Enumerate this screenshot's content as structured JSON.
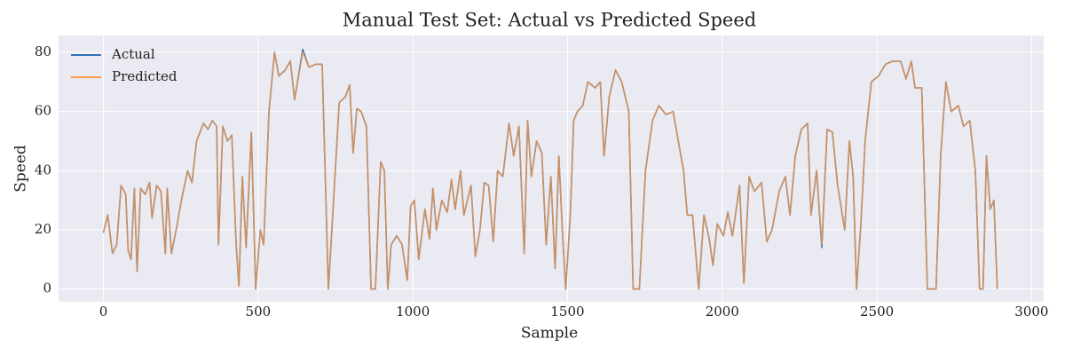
{
  "chart_data": {
    "type": "line",
    "title": "Manual Test Set: Actual vs Predicted Speed",
    "x_label": "Sample",
    "y_label": "Speed",
    "x": [
      0,
      14,
      29,
      43,
      57,
      72,
      80,
      89,
      100,
      109,
      120,
      135,
      149,
      157,
      172,
      186,
      200,
      206,
      220,
      235,
      252,
      272,
      286,
      301,
      323,
      338,
      352,
      366,
      372,
      386,
      401,
      415,
      429,
      438,
      449,
      461,
      478,
      492,
      507,
      518,
      535,
      553,
      567,
      587,
      604,
      618,
      644,
      664,
      687,
      707,
      727,
      741,
      762,
      782,
      796,
      807,
      819,
      833,
      850,
      865,
      879,
      896,
      908,
      919,
      930,
      948,
      965,
      982,
      993,
      1005,
      1019,
      1039,
      1054,
      1065,
      1076,
      1094,
      1111,
      1125,
      1137,
      1154,
      1165,
      1188,
      1202,
      1217,
      1231,
      1245,
      1260,
      1274,
      1291,
      1311,
      1326,
      1343,
      1360,
      1371,
      1383,
      1400,
      1417,
      1431,
      1446,
      1460,
      1472,
      1483,
      1494,
      1509,
      1520,
      1532,
      1549,
      1566,
      1589,
      1606,
      1618,
      1635,
      1655,
      1675,
      1698,
      1712,
      1732,
      1752,
      1775,
      1795,
      1818,
      1841,
      1858,
      1875,
      1887,
      1904,
      1924,
      1941,
      1958,
      1970,
      1984,
      2004,
      2018,
      2033,
      2056,
      2070,
      2087,
      2104,
      2127,
      2144,
      2161,
      2184,
      2204,
      2219,
      2236,
      2256,
      2276,
      2287,
      2305,
      2322,
      2339,
      2356,
      2373,
      2396,
      2411,
      2423,
      2434,
      2448,
      2462,
      2482,
      2505,
      2528,
      2551,
      2577,
      2594,
      2611,
      2623,
      2645,
      2663,
      2691,
      2706,
      2723,
      2740,
      2763,
      2780,
      2800,
      2818,
      2832,
      2843,
      2854,
      2866,
      2878,
      2889
    ],
    "series": [
      {
        "name": "Actual",
        "color": "#3274b5",
        "opacity": 1,
        "values": [
          19,
          25,
          12,
          15,
          35,
          32,
          13,
          10,
          34,
          6,
          34,
          32,
          36,
          24,
          35,
          33,
          12,
          34,
          12,
          20,
          30,
          40,
          36,
          50,
          56,
          54,
          57,
          55,
          15,
          55,
          50,
          52,
          15,
          1,
          38,
          14,
          53,
          0,
          20,
          15,
          60,
          80,
          72,
          74,
          77,
          64,
          81,
          75,
          76,
          76,
          0,
          25,
          63,
          65,
          69,
          46,
          61,
          60,
          55,
          0,
          0,
          43,
          40,
          0,
          15,
          18,
          15,
          3,
          28,
          30,
          10,
          27,
          17,
          34,
          20,
          30,
          26,
          37,
          27,
          40,
          25,
          35,
          11,
          20,
          36,
          35,
          16,
          40,
          38,
          56,
          45,
          55,
          12,
          57,
          38,
          50,
          46,
          15,
          38,
          7,
          45,
          20,
          0,
          25,
          57,
          60,
          62,
          70,
          68,
          70,
          45,
          65,
          74,
          70,
          60,
          0,
          0,
          40,
          57,
          62,
          59,
          60,
          50,
          40,
          25,
          25,
          0,
          25,
          17,
          8,
          22,
          18,
          26,
          18,
          35,
          2,
          38,
          33,
          36,
          16,
          20,
          33,
          38,
          25,
          45,
          54,
          56,
          25,
          40,
          14,
          54,
          53,
          35,
          20,
          50,
          38,
          0,
          22,
          50,
          70,
          72,
          76,
          77,
          77,
          71,
          77,
          68,
          68,
          0,
          0,
          45,
          70,
          60,
          62,
          55,
          57,
          40,
          0,
          0,
          45,
          27,
          30,
          0
        ]
      },
      {
        "name": "Predicted",
        "color": "#ff9a45",
        "opacity": 0.75,
        "values": [
          19,
          25,
          12,
          15,
          35,
          32,
          13,
          10,
          34,
          6,
          34,
          32,
          36,
          24,
          35,
          33,
          12,
          34,
          12,
          20,
          30,
          40,
          36,
          50,
          56,
          54,
          57,
          55,
          15,
          55,
          50,
          52,
          15,
          1,
          38,
          14,
          53,
          0,
          20,
          15,
          60,
          80,
          72,
          74,
          77,
          64,
          80,
          75,
          76,
          76,
          0,
          25,
          63,
          65,
          69,
          46,
          61,
          60,
          55,
          0,
          0,
          43,
          40,
          0,
          15,
          18,
          15,
          3,
          28,
          30,
          10,
          27,
          17,
          34,
          20,
          30,
          26,
          37,
          27,
          40,
          25,
          35,
          11,
          20,
          36,
          35,
          16,
          40,
          38,
          56,
          45,
          55,
          12,
          57,
          38,
          50,
          46,
          15,
          38,
          7,
          45,
          20,
          0,
          25,
          57,
          60,
          62,
          70,
          68,
          70,
          45,
          65,
          74,
          70,
          60,
          0,
          0,
          40,
          57,
          62,
          59,
          60,
          50,
          40,
          25,
          25,
          0,
          25,
          17,
          8,
          22,
          18,
          26,
          18,
          35,
          2,
          38,
          33,
          36,
          16,
          20,
          33,
          38,
          25,
          45,
          54,
          56,
          25,
          40,
          15,
          54,
          53,
          35,
          20,
          50,
          38,
          0,
          22,
          50,
          70,
          72,
          76,
          77,
          77,
          71,
          77,
          68,
          68,
          0,
          0,
          45,
          70,
          60,
          62,
          55,
          57,
          40,
          0,
          0,
          45,
          27,
          30,
          0
        ]
      }
    ],
    "xlim": [
      -145,
      3039
    ],
    "ylim": [
      -4.3,
      85.7
    ],
    "xticks": [
      0,
      500,
      1000,
      1500,
      2000,
      2500,
      3000
    ],
    "yticks": [
      0,
      20,
      40,
      60,
      80
    ],
    "grid": true,
    "legend": "upper left"
  }
}
